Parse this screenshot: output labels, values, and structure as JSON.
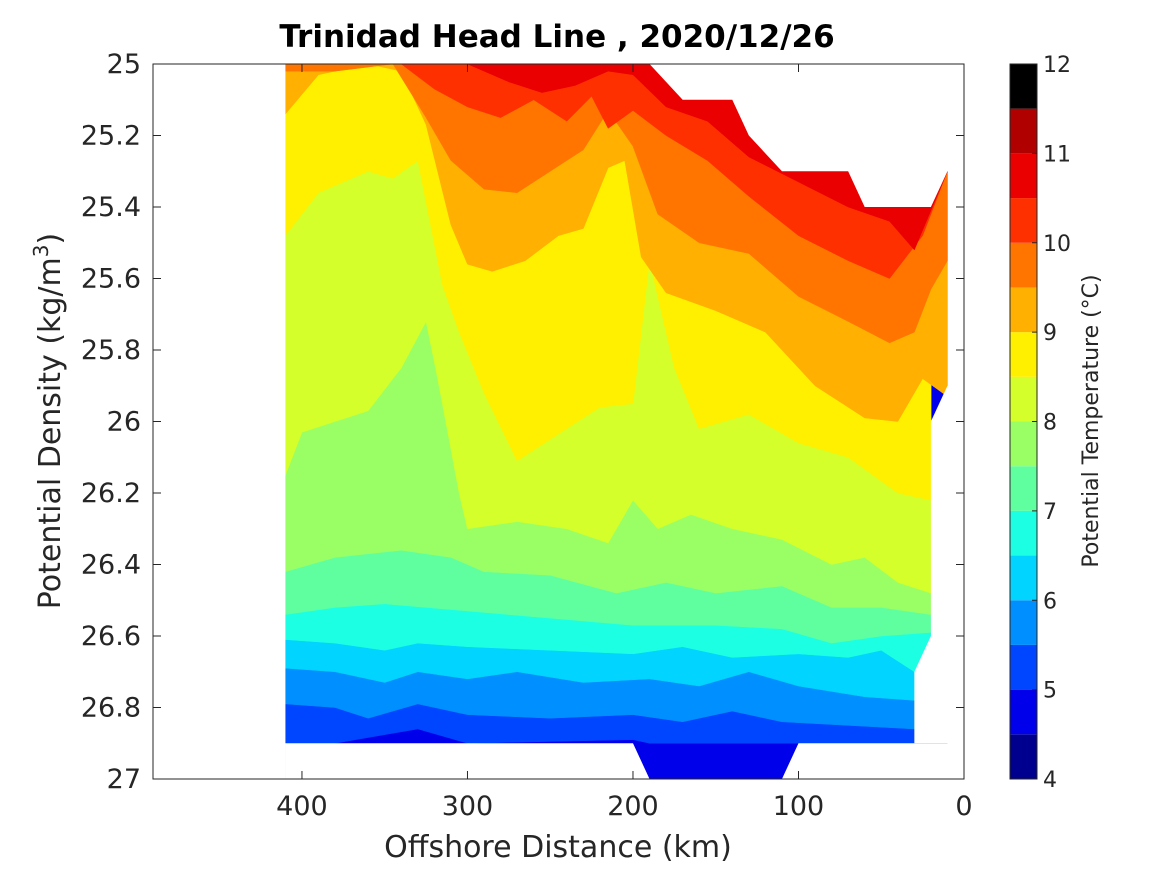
{
  "chart_data": {
    "type": "contour",
    "title": "Trinidad Head Line , 2020/12/26",
    "xlabel": "Offshore Distance (km)",
    "ylabel_main": "Potential Density (kg/m",
    "ylabel_sup": "3",
    "ylabel_close": ")",
    "colorbar_label": "Potential Temperature (°C)",
    "x_axis_reversed": true,
    "y_axis_reversed": true,
    "xlim": [
      0,
      490
    ],
    "ylim": [
      25,
      27
    ],
    "x_ticks": [
      400,
      300,
      200,
      100,
      0
    ],
    "x_tick_labels": [
      "400",
      "300",
      "200",
      "100",
      "0"
    ],
    "y_ticks": [
      25,
      25.2,
      25.4,
      25.6,
      25.8,
      26,
      26.2,
      26.4,
      26.6,
      26.8,
      27
    ],
    "y_tick_labels": [
      "25",
      "25.2",
      "25.4",
      "25.6",
      "25.8",
      "26",
      "26.2",
      "26.4",
      "26.6",
      "26.8",
      "27"
    ],
    "colorbar_range": [
      4,
      12
    ],
    "colorbar_ticks": [
      "4",
      "5",
      "6",
      "7",
      "8",
      "9",
      "10",
      "11",
      "12"
    ],
    "levels": [
      4,
      4.5,
      5,
      5.5,
      6,
      6.5,
      7,
      7.5,
      8,
      8.5,
      9,
      9.5,
      10,
      10.5,
      11,
      11.5,
      12
    ],
    "level_colors": [
      "#00008f",
      "#0000ea",
      "#0045ff",
      "#008fff",
      "#00d4ff",
      "#1cffe3",
      "#5fffa0",
      "#9aff65",
      "#d4ff2b",
      "#fff000",
      "#ffb000",
      "#ff7500",
      "#ff3000",
      "#ea0000",
      "#b00000"
    ],
    "data_extent": {
      "x_range": [
        10,
        410
      ],
      "y_range": [
        25,
        27
      ]
    },
    "isotherms_approx": [
      {
        "value": 5,
        "density_near_offshore_400km": 26.9,
        "note": "colder water only below 26.9 near 110-190 km"
      },
      {
        "value": 6.5,
        "density_mean": 26.69
      },
      {
        "value": 7,
        "density_mean": 26.63
      },
      {
        "value": 7.5,
        "density_mean": 26.55
      },
      {
        "value": 8,
        "density_mean": 26.45
      },
      {
        "value": 8.5,
        "density_mean": 26.3
      },
      {
        "value": 9,
        "density_mean": 26.0
      },
      {
        "value": 9.5,
        "density_mean": 25.6
      },
      {
        "value": 10,
        "density_mean": 25.4
      },
      {
        "value": 10.5,
        "density_mean": 25.2
      }
    ]
  }
}
